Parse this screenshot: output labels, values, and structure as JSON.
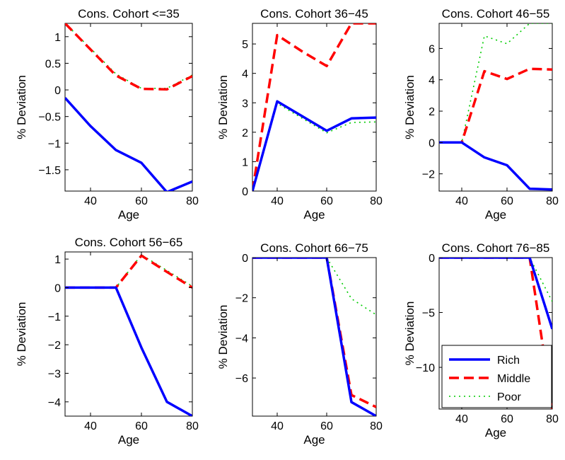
{
  "figure": {
    "legend": {
      "placement": "bottom-right of last panel",
      "entries": [
        "Rich",
        "Middle",
        "Poor"
      ]
    }
  },
  "styles": {
    "Rich": {
      "color": "#0000ff",
      "dash": "solid",
      "width": 3.5
    },
    "Middle": {
      "color": "#ff0000",
      "dash": "14,7",
      "width": 3.5
    },
    "Poor": {
      "color": "#00cc00",
      "dash": "2,5",
      "width": 1.6
    }
  },
  "chart_data": [
    {
      "type": "line",
      "title": "Cons. Cohort <=35",
      "xlabel": "Age",
      "ylabel": "% Deviation",
      "xlim": [
        30,
        80
      ],
      "ylim": [
        -1.9,
        1.25
      ],
      "xticks": [
        40,
        60,
        80
      ],
      "yticks": [
        1,
        0.5,
        0,
        -0.5,
        -1,
        -1.5
      ],
      "ytick_labels": [
        "1",
        "0.5",
        "0",
        "−0.5",
        "−1",
        "−1.5"
      ],
      "x": [
        30,
        40,
        50,
        60,
        70,
        80
      ],
      "series": [
        {
          "name": "Rich",
          "values": [
            -0.15,
            -0.68,
            -1.13,
            -1.37,
            -1.92,
            -1.72
          ]
        },
        {
          "name": "Middle",
          "values": [
            1.25,
            0.76,
            0.27,
            0.02,
            0.01,
            0.26
          ]
        },
        {
          "name": "Poor",
          "values": [
            1.25,
            0.78,
            0.3,
            0.03,
            0.03,
            0.28
          ]
        }
      ]
    },
    {
      "type": "line",
      "title": "Cons. Cohort 36−45",
      "xlabel": "Age",
      "ylabel": "% Deviation",
      "xlim": [
        30,
        80
      ],
      "ylim": [
        0,
        5.7
      ],
      "xticks": [
        40,
        60,
        80
      ],
      "yticks": [
        5,
        4,
        3,
        2,
        1,
        0
      ],
      "ytick_labels": [
        "5",
        "4",
        "3",
        "2",
        "1",
        "0"
      ],
      "x": [
        30,
        40,
        50,
        60,
        70,
        80
      ],
      "series": [
        {
          "name": "Rich",
          "values": [
            0,
            3.05,
            2.55,
            2.05,
            2.47,
            2.5
          ]
        },
        {
          "name": "Middle",
          "values": [
            0,
            5.3,
            4.75,
            4.25,
            5.7,
            5.7
          ]
        },
        {
          "name": "Poor",
          "values": [
            0,
            2.98,
            2.48,
            1.98,
            2.33,
            2.35
          ]
        }
      ]
    },
    {
      "type": "line",
      "title": "Cons. Cohort 46−55",
      "xlabel": "Age",
      "ylabel": "% Deviation",
      "xlim": [
        30,
        80
      ],
      "ylim": [
        -3.1,
        7.6
      ],
      "xticks": [
        40,
        60,
        80
      ],
      "yticks": [
        6,
        4,
        2,
        0,
        -2
      ],
      "ytick_labels": [
        "6",
        "4",
        "2",
        "0",
        "−2"
      ],
      "x": [
        30,
        40,
        50,
        60,
        70,
        80
      ],
      "series": [
        {
          "name": "Rich",
          "values": [
            0,
            0,
            -0.95,
            -1.45,
            -2.95,
            -3.0
          ]
        },
        {
          "name": "Middle",
          "values": [
            0,
            0,
            4.55,
            4.05,
            4.7,
            4.65
          ]
        },
        {
          "name": "Poor",
          "values": [
            0,
            0,
            6.8,
            6.3,
            7.6,
            7.6
          ]
        }
      ]
    },
    {
      "type": "line",
      "title": "Cons. Cohort 56−65",
      "xlabel": "Age",
      "ylabel": "% Deviation",
      "xlim": [
        30,
        80
      ],
      "ylim": [
        -4.5,
        1.25
      ],
      "xticks": [
        40,
        60,
        80
      ],
      "yticks": [
        1,
        0,
        -1,
        -2,
        -3,
        -4
      ],
      "ytick_labels": [
        "1",
        "0",
        "−1",
        "−2",
        "−3",
        "−4"
      ],
      "x": [
        30,
        40,
        50,
        60,
        70,
        80
      ],
      "series": [
        {
          "name": "Rich",
          "values": [
            0,
            0,
            0,
            -2.1,
            -4.0,
            -4.5
          ]
        },
        {
          "name": "Middle",
          "values": [
            0,
            0,
            0,
            1.12,
            0.55,
            0.0
          ]
        },
        {
          "name": "Poor",
          "values": [
            0,
            0,
            0,
            1.15,
            0.6,
            0.05
          ]
        }
      ]
    },
    {
      "type": "line",
      "title": "Cons. Cohort 66−75",
      "xlabel": "Age",
      "ylabel": "% Deviation",
      "xlim": [
        30,
        80
      ],
      "ylim": [
        -7.9,
        0
      ],
      "xticks": [
        40,
        60,
        80
      ],
      "yticks": [
        0,
        -2,
        -4,
        -6
      ],
      "ytick_labels": [
        "0",
        "−2",
        "−4",
        "−6"
      ],
      "x": [
        30,
        40,
        50,
        60,
        70,
        80
      ],
      "series": [
        {
          "name": "Rich",
          "values": [
            0,
            0,
            0,
            0,
            -7.2,
            -7.9
          ]
        },
        {
          "name": "Middle",
          "values": [
            0,
            0,
            0,
            0,
            -6.85,
            -7.45
          ]
        },
        {
          "name": "Poor",
          "values": [
            0,
            0,
            0,
            0,
            -2.05,
            -2.85
          ]
        }
      ]
    },
    {
      "type": "line",
      "title": "Cons. Cohort 76−85",
      "xlabel": "Age",
      "ylabel": "% Deviation",
      "xlim": [
        30,
        80
      ],
      "ylim": [
        -13.8,
        0
      ],
      "xticks": [
        40,
        60,
        80
      ],
      "yticks": [
        0,
        -5,
        -10
      ],
      "ytick_labels": [
        "0",
        "−5",
        "−10"
      ],
      "x": [
        30,
        40,
        50,
        60,
        70,
        80
      ],
      "series": [
        {
          "name": "Rich",
          "values": [
            0,
            0,
            0,
            0,
            0,
            -6.5
          ]
        },
        {
          "name": "Middle",
          "values": [
            0,
            0,
            0,
            0,
            0,
            -13.8
          ]
        },
        {
          "name": "Poor",
          "values": [
            0,
            0,
            0,
            0,
            0,
            -4.0
          ]
        }
      ]
    }
  ]
}
